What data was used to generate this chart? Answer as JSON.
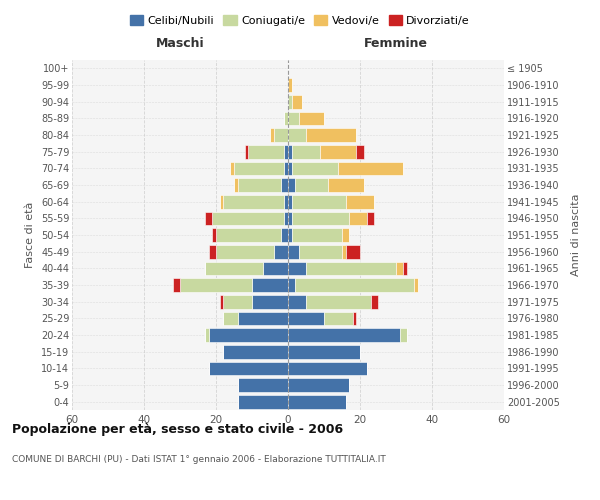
{
  "age_groups": [
    "0-4",
    "5-9",
    "10-14",
    "15-19",
    "20-24",
    "25-29",
    "30-34",
    "35-39",
    "40-44",
    "45-49",
    "50-54",
    "55-59",
    "60-64",
    "65-69",
    "70-74",
    "75-79",
    "80-84",
    "85-89",
    "90-94",
    "95-99",
    "100+"
  ],
  "birth_years": [
    "2001-2005",
    "1996-2000",
    "1991-1995",
    "1986-1990",
    "1981-1985",
    "1976-1980",
    "1971-1975",
    "1966-1970",
    "1961-1965",
    "1956-1960",
    "1951-1955",
    "1946-1950",
    "1941-1945",
    "1936-1940",
    "1931-1935",
    "1926-1930",
    "1921-1925",
    "1916-1920",
    "1911-1915",
    "1906-1910",
    "≤ 1905"
  ],
  "males": {
    "celibi": [
      14,
      14,
      22,
      18,
      22,
      14,
      10,
      10,
      7,
      4,
      2,
      1,
      1,
      2,
      1,
      1,
      0,
      0,
      0,
      0,
      0
    ],
    "coniugati": [
      0,
      0,
      0,
      0,
      1,
      4,
      8,
      20,
      16,
      16,
      18,
      20,
      17,
      12,
      14,
      10,
      4,
      1,
      0,
      0,
      0
    ],
    "vedovi": [
      0,
      0,
      0,
      0,
      0,
      0,
      0,
      0,
      0,
      0,
      0,
      0,
      1,
      1,
      1,
      0,
      1,
      0,
      0,
      0,
      0
    ],
    "divorziati": [
      0,
      0,
      0,
      0,
      0,
      0,
      1,
      2,
      0,
      2,
      1,
      2,
      0,
      0,
      0,
      1,
      0,
      0,
      0,
      0,
      0
    ]
  },
  "females": {
    "nubili": [
      16,
      17,
      22,
      20,
      31,
      10,
      5,
      2,
      5,
      3,
      1,
      1,
      1,
      2,
      1,
      1,
      0,
      0,
      0,
      0,
      0
    ],
    "coniugate": [
      0,
      0,
      0,
      0,
      2,
      8,
      18,
      33,
      25,
      12,
      14,
      16,
      15,
      9,
      13,
      8,
      5,
      3,
      1,
      0,
      0
    ],
    "vedove": [
      0,
      0,
      0,
      0,
      0,
      0,
      0,
      1,
      2,
      1,
      2,
      5,
      8,
      10,
      18,
      10,
      14,
      7,
      3,
      1,
      0
    ],
    "divorziate": [
      0,
      0,
      0,
      0,
      0,
      1,
      2,
      0,
      1,
      4,
      0,
      2,
      0,
      0,
      0,
      2,
      0,
      0,
      0,
      0,
      0
    ]
  },
  "colors": {
    "celibi": "#4472a8",
    "coniugati": "#c8d9a0",
    "vedovi": "#f0c060",
    "divorziati": "#cc2222"
  },
  "xlim": 60,
  "title": "Popolazione per età, sesso e stato civile - 2006",
  "subtitle": "COMUNE DI BARCHI (PU) - Dati ISTAT 1° gennaio 2006 - Elaborazione TUTTITALIA.IT",
  "ylabel": "Fasce di età",
  "ylabel_right": "Anni di nascita",
  "xlabel_left": "Maschi",
  "xlabel_right": "Femmine",
  "legend_labels": [
    "Celibi/Nubili",
    "Coniugati/e",
    "Vedovi/e",
    "Divorziati/e"
  ]
}
